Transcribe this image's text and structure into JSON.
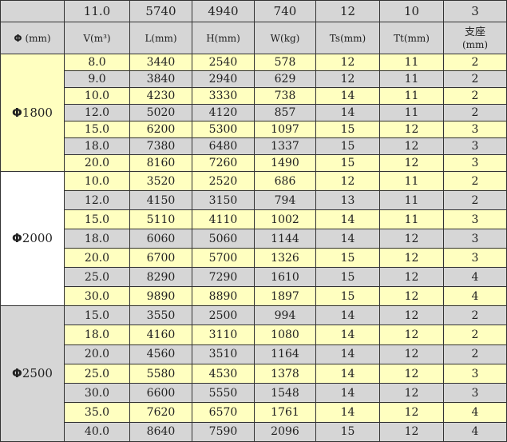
{
  "top_row": [
    "",
    "11.0",
    "5740",
    "4940",
    "740",
    "12",
    "10",
    "3"
  ],
  "headers": {
    "phi": "Φ",
    "phi_unit": "(mm)",
    "cols": [
      "V(m³)",
      "L(mm)",
      "H(mm)",
      "W(kg)",
      "Ts(mm)",
      "Tt(mm)"
    ],
    "support": "支座",
    "support_unit": "(mm)"
  },
  "groups": [
    {
      "label": "1800",
      "rows": [
        [
          "8.0",
          "3440",
          "2540",
          "578",
          "12",
          "11",
          "2"
        ],
        [
          "9.0",
          "3840",
          "2940",
          "629",
          "12",
          "11",
          "2"
        ],
        [
          "10.0",
          "4230",
          "3330",
          "738",
          "14",
          "11",
          "2"
        ],
        [
          "12.0",
          "5020",
          "4120",
          "857",
          "14",
          "11",
          "2"
        ],
        [
          "15.0",
          "6200",
          "5300",
          "1097",
          "15",
          "12",
          "3"
        ],
        [
          "18.0",
          "7380",
          "6480",
          "1337",
          "15",
          "12",
          "3"
        ],
        [
          "20.0",
          "8160",
          "7260",
          "1490",
          "15",
          "12",
          "3"
        ]
      ]
    },
    {
      "label": "2000",
      "rows": [
        [
          "10.0",
          "3520",
          "2520",
          "686",
          "12",
          "11",
          "2"
        ],
        [
          "12.0",
          "4150",
          "3150",
          "794",
          "13",
          "11",
          "2"
        ],
        [
          "15.0",
          "5110",
          "4110",
          "1002",
          "14",
          "11",
          "3"
        ],
        [
          "18.0",
          "6060",
          "5060",
          "1144",
          "14",
          "12",
          "3"
        ],
        [
          "20.0",
          "6700",
          "5700",
          "1326",
          "15",
          "12",
          "3"
        ],
        [
          "25.0",
          "8290",
          "7290",
          "1610",
          "15",
          "12",
          "4"
        ],
        [
          "30.0",
          "9890",
          "8890",
          "1897",
          "15",
          "12",
          "4"
        ]
      ]
    },
    {
      "label": "2500",
      "rows": [
        [
          "15.0",
          "3550",
          "2500",
          "994",
          "14",
          "12",
          "2"
        ],
        [
          "18.0",
          "4160",
          "3110",
          "1080",
          "14",
          "12",
          "2"
        ],
        [
          "20.0",
          "4560",
          "3510",
          "1164",
          "14",
          "12",
          "2"
        ],
        [
          "25.0",
          "5580",
          "4530",
          "1378",
          "14",
          "12",
          "3"
        ],
        [
          "30.0",
          "6600",
          "5550",
          "1548",
          "14",
          "12",
          "3"
        ],
        [
          "35.0",
          "7620",
          "6570",
          "1761",
          "14",
          "12",
          "4"
        ],
        [
          "40.0",
          "8640",
          "7590",
          "2096",
          "15",
          "12",
          "4"
        ]
      ]
    }
  ],
  "colors": {
    "gray": "#d6d6d6",
    "yellow": "#ffffc0",
    "white": "#ffffff"
  }
}
